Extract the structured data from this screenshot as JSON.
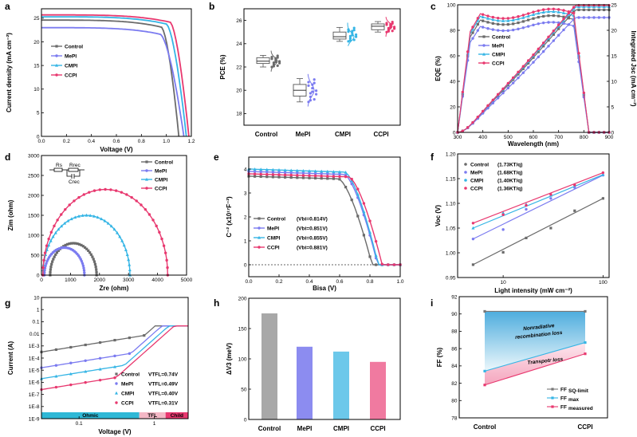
{
  "colors": {
    "control": "#6b6b6b",
    "mepi": "#7b7bf0",
    "cmpi": "#35b5e5",
    "ccpi": "#e8386f"
  },
  "chart_data": [
    {
      "id": "a",
      "type": "line",
      "panel_label": "a",
      "xlabel": "Voltage (V)",
      "ylabel": "Current density (mA cm⁻²)",
      "xlim": [
        0,
        1.2
      ],
      "ylim": [
        0,
        27
      ],
      "xticks": [
        "0.0",
        "0.2",
        "0.4",
        "0.6",
        "0.8",
        "1.0",
        "1.2"
      ],
      "yticks": [
        "0",
        "5",
        "10",
        "15",
        "20",
        "25"
      ],
      "series": [
        {
          "name": "Control",
          "jsc": 24.6,
          "voc": 1.1,
          "knee": 0.96
        },
        {
          "name": "MePI",
          "jsc": 23.0,
          "voc": 1.14,
          "knee": 0.95
        },
        {
          "name": "CMPI",
          "jsc": 25.3,
          "voc": 1.16,
          "knee": 1.0
        },
        {
          "name": "CCPI",
          "jsc": 25.7,
          "voc": 1.18,
          "knee": 1.03
        }
      ]
    },
    {
      "id": "b",
      "type": "box",
      "panel_label": "b",
      "xlabel": "",
      "ylabel": "PCE (%)",
      "ylim": [
        17,
        27
      ],
      "yticks": [
        "18",
        "20",
        "22",
        "24",
        "26"
      ],
      "categories": [
        "Control",
        "MePI",
        "CMPI",
        "CCPI"
      ],
      "boxes": [
        {
          "name": "Control",
          "min": 22.0,
          "q1": 22.3,
          "median": 22.5,
          "q3": 22.8,
          "max": 23.0
        },
        {
          "name": "MePI",
          "min": 19.0,
          "q1": 19.5,
          "median": 20.0,
          "q3": 20.5,
          "max": 21.0
        },
        {
          "name": "CMPI",
          "min": 24.2,
          "q1": 24.4,
          "median": 24.6,
          "q3": 25.0,
          "max": 25.4
        },
        {
          "name": "CCPI",
          "min": 25.0,
          "q1": 25.2,
          "median": 25.5,
          "q3": 25.7,
          "max": 25.9
        }
      ]
    },
    {
      "id": "c",
      "type": "line",
      "panel_label": "c",
      "xlabel": "Wavelength (nm)",
      "ylabel": "EQE (%)",
      "ylabel_right": "Integrated Jsc (mA cm⁻²)",
      "xlim": [
        300,
        900
      ],
      "ylim": [
        0,
        100
      ],
      "ylim_right": [
        0,
        25
      ],
      "xticks": [
        "300",
        "400",
        "500",
        "600",
        "700",
        "800",
        "900"
      ],
      "yticks": [
        "0",
        "20",
        "40",
        "60",
        "80",
        "100"
      ],
      "yticks_right": [
        "0",
        "5",
        "10",
        "15",
        "20",
        "25"
      ],
      "series": [
        {
          "name": "Control",
          "plateau": 88,
          "jsc_final": 24.0
        },
        {
          "name": "MePI",
          "plateau": 83,
          "jsc_final": 22.5
        },
        {
          "name": "CMPI",
          "plateau": 91,
          "jsc_final": 24.6
        },
        {
          "name": "CCPI",
          "plateau": 93,
          "jsc_final": 24.9
        }
      ]
    },
    {
      "id": "d",
      "type": "scatter",
      "panel_label": "d",
      "xlabel": "Zre (ohm)",
      "ylabel": "Zim (ohm)",
      "xlim": [
        0,
        5000
      ],
      "ylim": [
        0,
        3000
      ],
      "xticks": [
        "0",
        "1000",
        "2000",
        "3000",
        "4000",
        "5000"
      ],
      "yticks": [
        "0",
        "500",
        "1000",
        "1500",
        "2000",
        "2500",
        "3000"
      ],
      "circuit_labels": [
        "Rs",
        "Rrec",
        "Crec"
      ],
      "series": [
        {
          "name": "Control",
          "r_start": 300,
          "r_end": 1900
        },
        {
          "name": "MePI",
          "r_start": 100,
          "r_end": 1480
        },
        {
          "name": "CMPI",
          "r_start": 50,
          "r_end": 3050
        },
        {
          "name": "CCPI",
          "r_start": 50,
          "r_end": 4350
        }
      ]
    },
    {
      "id": "e",
      "type": "line",
      "panel_label": "e",
      "xlabel": "Bisa (V)",
      "ylabel": "C⁻² (x10¹⁷F⁻²)",
      "xlim": [
        0,
        1.0
      ],
      "ylim": [
        -0.5,
        4.5
      ],
      "xticks": [
        "0.0",
        "0.2",
        "0.4",
        "0.6",
        "0.8",
        "1.0"
      ],
      "yticks": [
        "0",
        "1",
        "2",
        "3",
        "4"
      ],
      "series": [
        {
          "name": "Control",
          "vbi": "(Vbi=0.814V)",
          "vbi_value": 0.814,
          "level": 3.7
        },
        {
          "name": "MePI",
          "vbi": "(Vbi=0.851V)",
          "vbi_value": 0.851,
          "level": 3.9
        },
        {
          "name": "CMPI",
          "vbi": "(Vbi=0.855V)",
          "vbi_value": 0.855,
          "level": 4.0
        },
        {
          "name": "CCPI",
          "vbi": "(Vbi=0.881V)",
          "vbi_value": 0.881,
          "level": 3.8
        }
      ]
    },
    {
      "id": "f",
      "type": "scatter",
      "panel_label": "f",
      "xlabel": "Light intensity (mW cm⁻²)",
      "ylabel": "Voc (V)",
      "xlim": [
        3.5,
        115
      ],
      "ylim": [
        0.95,
        1.2
      ],
      "xticks": [
        "10",
        "100"
      ],
      "yticks": [
        "0.95",
        "1.00",
        "1.05",
        "1.10",
        "1.15",
        "1.20"
      ],
      "x": [
        5,
        10,
        17,
        30,
        52,
        100
      ],
      "series": [
        {
          "name": "Control",
          "slope": "(1.73KT/q)",
          "values": [
            0.976,
            1.001,
            1.03,
            1.05,
            1.085,
            1.11
          ]
        },
        {
          "name": "MePI",
          "slope": "(1.68KT/q)",
          "values": [
            1.028,
            1.047,
            1.088,
            1.11,
            1.132,
            1.157
          ]
        },
        {
          "name": "CMPI",
          "slope": "(1.40KT/q)",
          "values": [
            1.05,
            1.081,
            1.098,
            1.116,
            1.138,
            1.158
          ]
        },
        {
          "name": "CCPI",
          "slope": "(1.36KT/q)",
          "values": [
            1.06,
            1.077,
            1.096,
            1.118,
            1.137,
            1.162
          ]
        }
      ]
    },
    {
      "id": "g",
      "type": "line",
      "panel_label": "g",
      "xlabel": "Voltage (V)",
      "ylabel": "Current (A)",
      "xlim_log": [
        -1.5,
        0.45
      ],
      "ylim_log": [
        -9,
        1
      ],
      "xticks": [
        "0.1",
        "1"
      ],
      "yticks": [
        "10",
        "1",
        "0.1",
        "0.01",
        "1E-3",
        "1E-4",
        "1E-5",
        "1E-6",
        "1E-7",
        "1E-8",
        "1E-9"
      ],
      "regions": [
        {
          "name": "Ohmic",
          "color": "#2fb8d6"
        },
        {
          "name": "TFL",
          "color": "#f4b8c6"
        },
        {
          "name": "Child",
          "color": "#e8386f"
        }
      ],
      "series": [
        {
          "name": "Control",
          "vtfl_label": "VTFL=0.74V",
          "vtfl": 0.74,
          "i0_log": -3.5
        },
        {
          "name": "MePI",
          "vtfl_label": "VTFL=0.49V",
          "vtfl": 0.49,
          "i0_log": -4.8
        },
        {
          "name": "CMPI",
          "vtfl_label": "VTFL=0.40V",
          "vtfl": 0.4,
          "i0_log": -5.7
        },
        {
          "name": "CCPI",
          "vtfl_label": "VTFL=0.31V",
          "vtfl": 0.31,
          "i0_log": -6.6
        }
      ]
    },
    {
      "id": "h",
      "type": "bar",
      "panel_label": "h",
      "xlabel": "",
      "ylabel": "ΔV3 (meV)",
      "ylim": [
        0,
        200
      ],
      "yticks": [
        "0",
        "50",
        "100",
        "150",
        "200"
      ],
      "categories": [
        "Control",
        "MePI",
        "CMPI",
        "CCPI"
      ],
      "values": [
        175,
        120,
        112,
        95
      ]
    },
    {
      "id": "i",
      "type": "line",
      "panel_label": "i",
      "xlabel": "",
      "ylabel": "FF (%)",
      "ylim": [
        78,
        92
      ],
      "yticks": [
        "78",
        "80",
        "82",
        "84",
        "86",
        "88",
        "90",
        "92"
      ],
      "categories": [
        "Control",
        "CCPI"
      ],
      "series": [
        {
          "name": "FF",
          "sub": "SQ-limit",
          "values": [
            90.3,
            90.3
          ]
        },
        {
          "name": "FF",
          "sub": "max",
          "values": [
            83.4,
            86.7
          ]
        },
        {
          "name": "FF",
          "sub": "measured",
          "values": [
            81.8,
            85.4
          ]
        }
      ],
      "annotations": [
        "Nonradiative",
        "recombination loss",
        "Transpotr loss"
      ]
    }
  ]
}
